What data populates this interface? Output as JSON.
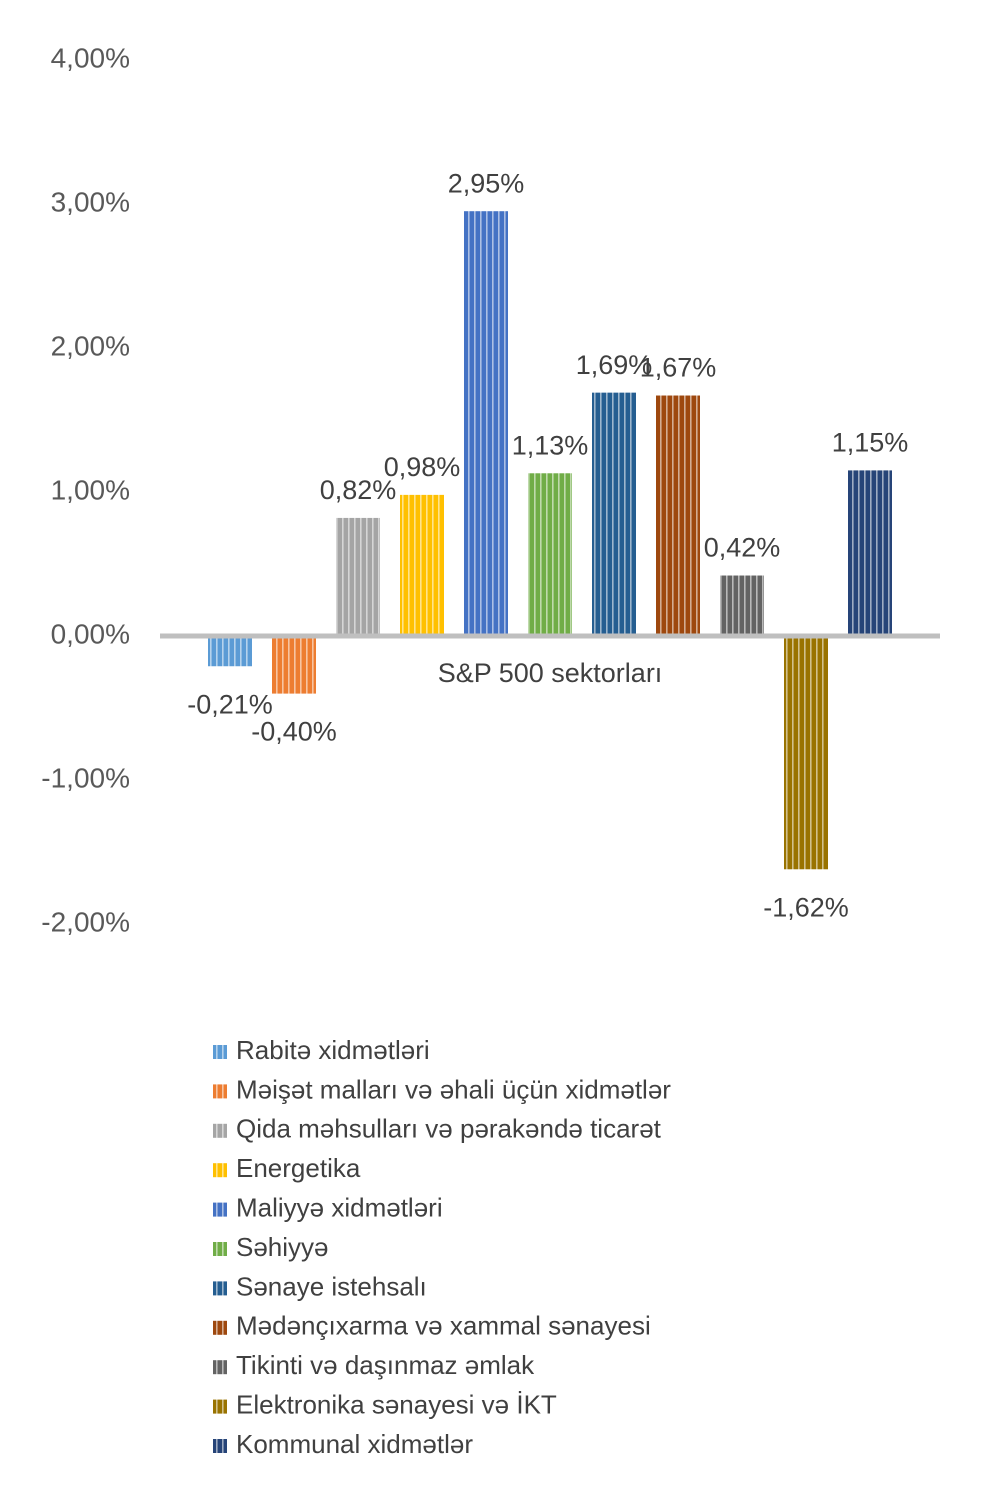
{
  "chart_data": {
    "type": "bar",
    "categories": [
      "S&P 500 sektorları"
    ],
    "series": [
      {
        "name": "Rabitə xidmətləri",
        "color": "#5b9bd5",
        "values": [
          -0.21
        ],
        "value_labels": [
          "-0,21%"
        ]
      },
      {
        "name": "Məişət malları və əhali üçün xidmətlər",
        "color": "#ed7d31",
        "values": [
          -0.4
        ],
        "value_labels": [
          "-0,40%"
        ]
      },
      {
        "name": "Qida məhsulları və pərakəndə ticarət",
        "color": "#a5a5a5",
        "values": [
          0.82
        ],
        "value_labels": [
          "0,82%"
        ]
      },
      {
        "name": "Energetika",
        "color": "#ffc000",
        "values": [
          0.98
        ],
        "value_labels": [
          "0,98%"
        ]
      },
      {
        "name": "Maliyyə xidmətləri",
        "color": "#4472c4",
        "values": [
          2.95
        ],
        "value_labels": [
          "2,95%"
        ]
      },
      {
        "name": "Səhiyyə",
        "color": "#70ad47",
        "values": [
          1.13
        ],
        "value_labels": [
          "1,13%"
        ]
      },
      {
        "name": "Sənaye istehsalı",
        "color": "#255e91",
        "values": [
          1.69
        ],
        "value_labels": [
          "1,69%"
        ]
      },
      {
        "name": "Mədənçıxarma və xammal sənayesi",
        "color": "#9e480e",
        "values": [
          1.67
        ],
        "value_labels": [
          "1,67%"
        ]
      },
      {
        "name": "Tikinti və daşınmaz əmlak",
        "color": "#636363",
        "values": [
          0.42
        ],
        "value_labels": [
          "0,42%"
        ]
      },
      {
        "name": "Elektronika sənayesi və İKT",
        "color": "#997300",
        "values": [
          -1.62
        ],
        "value_labels": [
          "-1,62%"
        ]
      },
      {
        "name": "Kommunal xidmətlər",
        "color": "#264478",
        "values": [
          1.15
        ],
        "value_labels": [
          "1,15%"
        ]
      }
    ],
    "ylim": [
      -2,
      4
    ],
    "yticks": [
      {
        "value": -2,
        "label": "-2,00%"
      },
      {
        "value": -1,
        "label": "-1,00%"
      },
      {
        "value": 0,
        "label": "0,00%"
      },
      {
        "value": 1,
        "label": "1,00%"
      },
      {
        "value": 2,
        "label": "2,00%"
      },
      {
        "value": 3,
        "label": "3,00%"
      },
      {
        "value": 4,
        "label": "4,00%"
      }
    ],
    "grid": false,
    "legend": "bottom"
  }
}
